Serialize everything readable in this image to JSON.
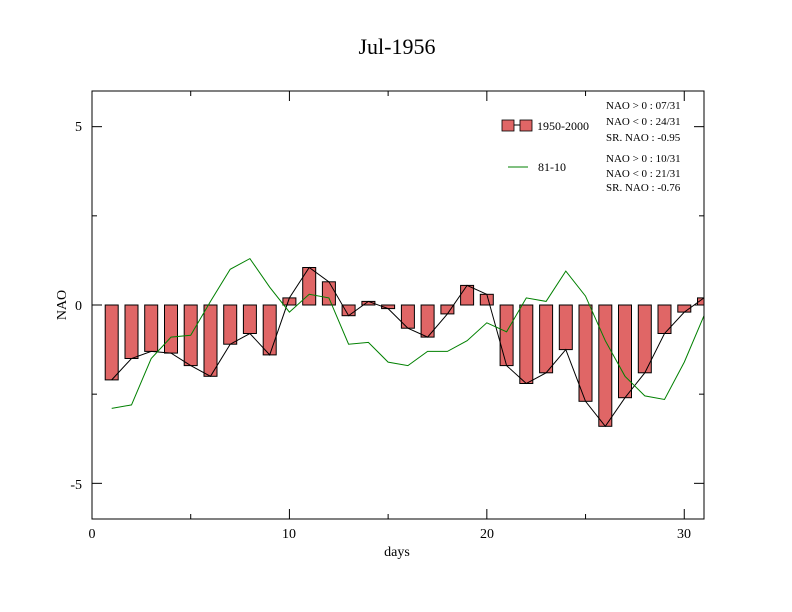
{
  "chart_data": {
    "type": "bar",
    "title": "Jul-1956",
    "xlabel": "days",
    "ylabel": "NAO",
    "xlim": [
      0,
      31
    ],
    "ylim": [
      -6,
      6
    ],
    "x_ticks": [
      "0",
      "10",
      "20",
      "30"
    ],
    "y_ticks": [
      "5",
      "0",
      "-5"
    ],
    "grid": false,
    "legend_position": "top-right",
    "colors": {
      "bars": "#e06666",
      "bar_outline": "#000000",
      "line_1950": "#000000",
      "line_8110": "#008000"
    },
    "days": [
      1,
      2,
      3,
      4,
      5,
      6,
      7,
      8,
      9,
      10,
      11,
      12,
      13,
      14,
      15,
      16,
      17,
      18,
      19,
      20,
      21,
      22,
      23,
      24,
      25,
      26,
      27,
      28,
      29,
      30,
      31
    ],
    "series": [
      {
        "name": "1950-2000",
        "values": [
          -2.1,
          -1.5,
          -1.3,
          -1.35,
          -1.7,
          -2.0,
          -1.1,
          -0.8,
          -1.4,
          0.2,
          1.05,
          0.65,
          -0.3,
          0.1,
          -0.1,
          -0.65,
          -0.9,
          -0.25,
          0.55,
          0.3,
          -1.7,
          -2.2,
          -1.9,
          -1.25,
          -2.7,
          -3.4,
          -2.6,
          -1.9,
          -0.8,
          -0.2,
          0.2
        ]
      },
      {
        "name": "81-10",
        "values": [
          -2.9,
          -2.8,
          -1.5,
          -0.9,
          -0.85,
          0.1,
          1.0,
          1.3,
          0.5,
          -0.2,
          0.3,
          0.2,
          -1.1,
          -1.05,
          -1.6,
          -1.7,
          -1.3,
          -1.3,
          -1.0,
          -0.5,
          -0.75,
          0.2,
          0.1,
          0.95,
          0.25,
          -1.0,
          -2.0,
          -2.55,
          -2.65,
          -1.6,
          -0.3
        ]
      }
    ],
    "stats": [
      [
        "NAO > 0 : 07/31",
        "NAO < 0 : 24/31",
        "SR. NAO : -0.95"
      ],
      [
        "NAO > 0 : 10/31",
        "NAO < 0 : 21/31",
        "SR. NAO : -0.76"
      ]
    ]
  }
}
